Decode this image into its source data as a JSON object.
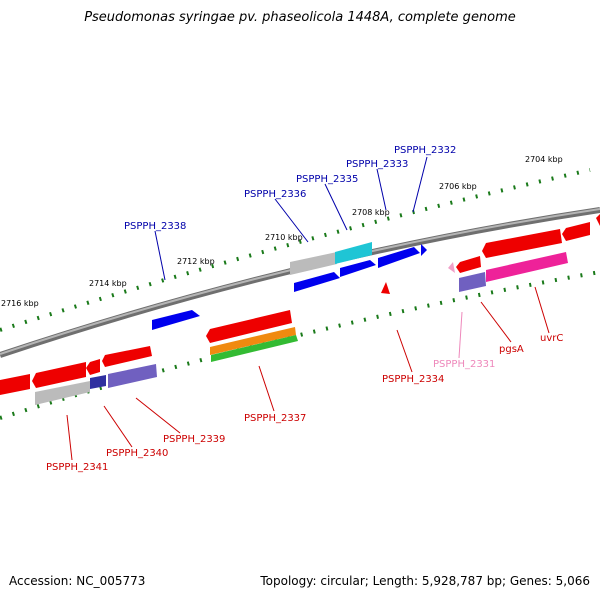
{
  "title": "Pseudomonas syringae pv. phaseolicola 1448A, complete genome",
  "footer": {
    "accession": "Accession: NC_005773",
    "summary": "Topology: circular; Length: 5,928,787 bp; Genes: 5,066"
  },
  "colors": {
    "backbone": "#888888",
    "tick": "#1a7a1a",
    "forward_label": "#0000aa",
    "reverse_label": "#cc0000",
    "pink_label": "#ee88bb"
  },
  "scale_labels": [
    "2704 kbp",
    "2706 kbp",
    "2708 kbp",
    "2710 kbp",
    "2712 kbp",
    "2714 kbp",
    "2716 kbp"
  ],
  "genes": [
    {
      "id": "PSPPH_2332",
      "label": "PSPPH_2332",
      "strand": "+",
      "color": "#0000ee"
    },
    {
      "id": "PSPPH_2333",
      "label": "PSPPH_2333",
      "strand": "+",
      "color": "#0000ee"
    },
    {
      "id": "PSPPH_2335",
      "label": "PSPPH_2335",
      "strand": "+",
      "color": "#00bcd4"
    },
    {
      "id": "PSPPH_2336",
      "label": "PSPPH_2336",
      "strand": "+",
      "color": "#0000ee"
    },
    {
      "id": "PSPPH_2338",
      "label": "PSPPH_2338",
      "strand": "+",
      "color": "#0000ee"
    },
    {
      "id": "uvrC",
      "label": "uvrC",
      "strand": "-",
      "color": "#ee0000"
    },
    {
      "id": "pgsA",
      "label": "pgsA",
      "strand": "-",
      "color": "#ee0099"
    },
    {
      "id": "PSPPH_2331",
      "label": "PSPPH_2331",
      "strand": "-",
      "color": "#f0a0c8"
    },
    {
      "id": "PSPPH_2334",
      "label": "PSPPH_2334",
      "strand": "-",
      "color": "#ee0000"
    },
    {
      "id": "PSPPH_2337",
      "label": "PSPPH_2337",
      "strand": "-",
      "color": "#ee0000"
    },
    {
      "id": "PSPPH_2339",
      "label": "PSPPH_2339",
      "strand": "-",
      "color": "#7060c0"
    },
    {
      "id": "PSPPH_2340",
      "label": "PSPPH_2340",
      "strand": "-",
      "color": "#ee0000"
    },
    {
      "id": "PSPPH_2341",
      "label": "PSPPH_2341",
      "strand": "-",
      "color": "#ee0000"
    }
  ]
}
